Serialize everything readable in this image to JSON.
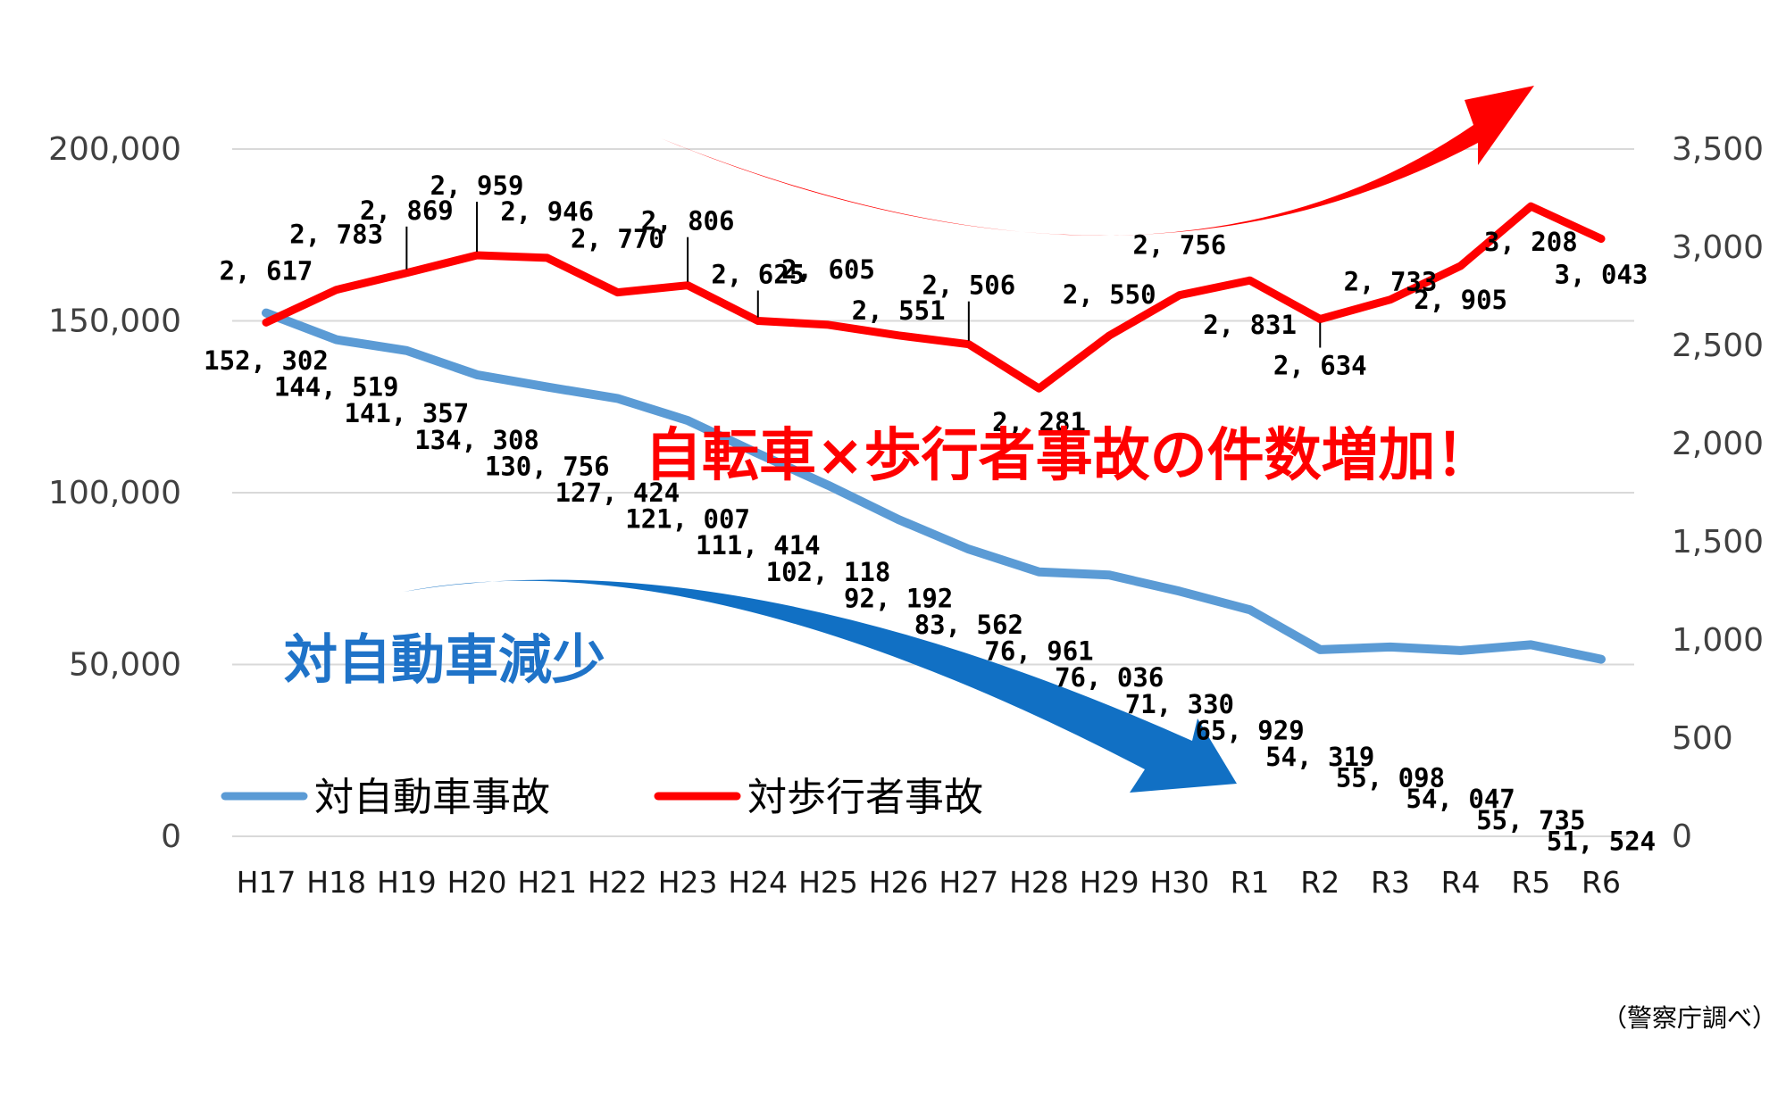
{
  "chart_data": {
    "type": "line",
    "categories": [
      "H17",
      "H18",
      "H19",
      "H20",
      "H21",
      "H22",
      "H23",
      "H24",
      "H25",
      "H26",
      "H27",
      "H28",
      "H29",
      "H30",
      "R1",
      "R2",
      "R3",
      "R4",
      "R5",
      "R6"
    ],
    "left_axis": {
      "ylim": [
        0,
        200000
      ],
      "ticks": [
        "0",
        "50,000",
        "100,000",
        "150,000",
        "200,000"
      ],
      "tick_values": [
        0,
        50000,
        100000,
        150000,
        200000
      ]
    },
    "right_axis": {
      "ylim": [
        0,
        3500
      ],
      "ticks": [
        "0",
        "500",
        "1,000",
        "1,500",
        "2,000",
        "2,500",
        "3,000",
        "3,500"
      ],
      "tick_values": [
        0,
        500,
        1000,
        1500,
        2000,
        2500,
        3000,
        3500
      ]
    },
    "grid": true,
    "series": [
      {
        "name": "対自動車事故",
        "axis": "left",
        "color": "#5b9bd5",
        "values": [
          152302,
          144519,
          141357,
          134308,
          130756,
          127424,
          121007,
          111414,
          102118,
          92192,
          83562,
          76961,
          76036,
          71330,
          65929,
          54319,
          55098,
          54047,
          55735,
          51524
        ],
        "labels": [
          "152, 302",
          "144, 519",
          "141, 357",
          "134, 308",
          "130, 756",
          "127, 424",
          "121, 007",
          "111, 414",
          "102, 118",
          "92, 192",
          "83, 562",
          "76, 961",
          "76, 036",
          "71, 330",
          "65, 929",
          "54, 319",
          "55, 098",
          "54, 047",
          "55, 735",
          "51, 524"
        ]
      },
      {
        "name": "対歩行者事故",
        "axis": "right",
        "color": "#ff0000",
        "values": [
          2617,
          2783,
          2869,
          2959,
          2946,
          2770,
          2806,
          2625,
          2605,
          2551,
          2506,
          2281,
          2550,
          2756,
          2831,
          2634,
          2733,
          2905,
          3208,
          3043
        ],
        "labels": [
          "2, 617",
          "2, 783",
          "2, 869",
          "2, 959",
          "2, 946",
          "2, 770",
          "2, 806",
          "2, 625",
          "2, 605",
          "2, 551",
          "2, 506",
          "2, 281",
          "2, 550",
          "2, 756",
          "2, 831",
          "2, 634",
          "2, 733",
          "2, 905",
          "3, 208",
          "3, 043"
        ]
      }
    ],
    "legend": {
      "placement": "bottom-left",
      "items": [
        "対自動車事故",
        "対歩行者事故"
      ]
    },
    "annotations": {
      "increase": "自転車×歩行者事故の件数増加！",
      "decrease": "対自動車減少"
    },
    "source": "（警察庁調べ）"
  }
}
